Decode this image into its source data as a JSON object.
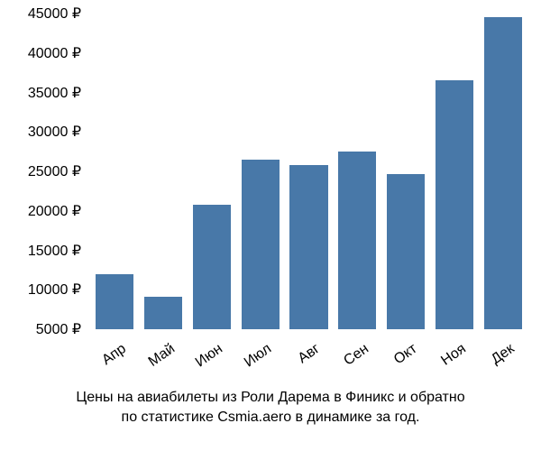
{
  "chart": {
    "type": "bar",
    "categories": [
      "Апр",
      "Май",
      "Июн",
      "Июл",
      "Авг",
      "Сен",
      "Окт",
      "Ноя",
      "Дек"
    ],
    "values": [
      12000,
      9100,
      20800,
      26500,
      25800,
      27500,
      24700,
      36500,
      44500
    ],
    "bar_color": "#4878a8",
    "y_min": 5000,
    "y_max": 45000,
    "y_tick_step": 5000,
    "y_tick_labels": [
      "5000 ₽",
      "10000 ₽",
      "15000 ₽",
      "20000 ₽",
      "25000 ₽",
      "30000 ₽",
      "35000 ₽",
      "40000 ₽",
      "45000 ₽"
    ],
    "y_tick_values": [
      5000,
      10000,
      15000,
      20000,
      25000,
      30000,
      35000,
      40000,
      45000
    ],
    "bar_width_ratio": 0.78,
    "background_color": "#ffffff",
    "label_fontsize": 16,
    "x_label_rotation": -35
  },
  "caption": {
    "line1": "Цены на авиабилеты из Роли Дарема в Финикс и обратно",
    "line2": "по статистике Csmia.aero в динамике за год."
  }
}
